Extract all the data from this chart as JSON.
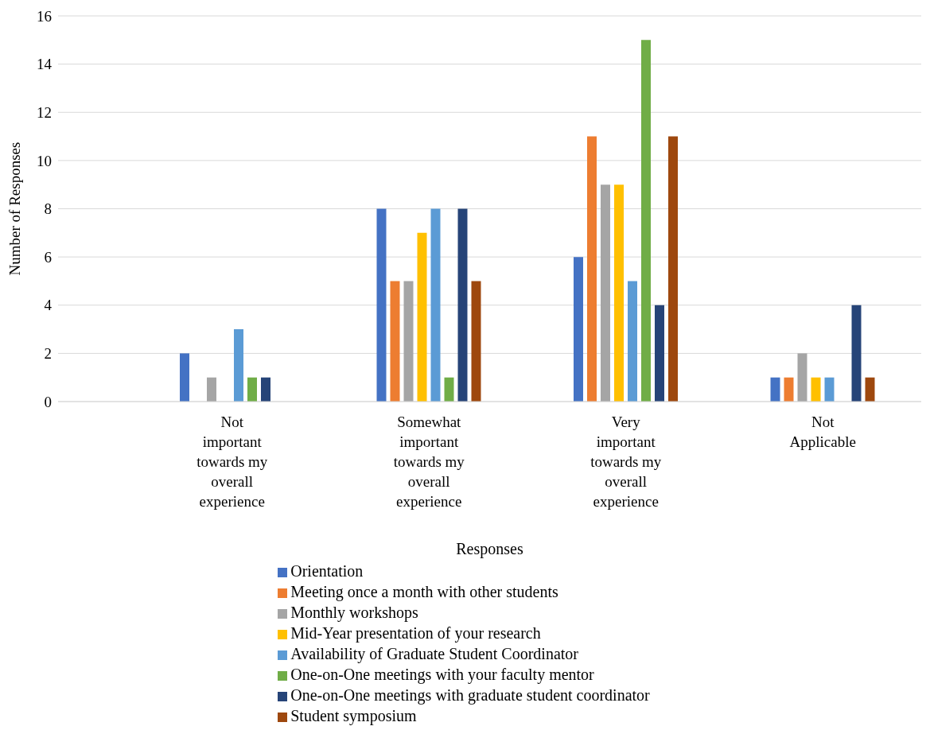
{
  "chart_data": {
    "type": "bar",
    "xlabel": "Responses",
    "ylabel": "Number of Responses",
    "categories": [
      "Not important towards my overall experience",
      "Somewhat important towards my overall experience",
      "Very important towards my overall experience",
      "Not Applicable"
    ],
    "series": [
      {
        "name": "Orientation",
        "color": "#4472c4",
        "values": [
          2,
          8,
          6,
          1
        ]
      },
      {
        "name": "Meeting once a month with other students",
        "color": "#ed7d31",
        "values": [
          0,
          5,
          11,
          1
        ]
      },
      {
        "name": "Monthly workshops",
        "color": "#a5a5a5",
        "values": [
          1,
          5,
          9,
          2
        ]
      },
      {
        "name": "Mid-Year presentation of your research",
        "color": "#ffc000",
        "values": [
          0,
          7,
          9,
          1
        ]
      },
      {
        "name": "Availability of Graduate Student Coordinator",
        "color": "#5b9bd5",
        "values": [
          3,
          8,
          5,
          1
        ]
      },
      {
        "name": "One-on-One meetings with your faculty mentor",
        "color": "#70ad47",
        "values": [
          1,
          1,
          15,
          0
        ]
      },
      {
        "name": "One-on-One meetings with graduate student coordinator",
        "color": "#264478",
        "values": [
          1,
          8,
          4,
          4
        ]
      },
      {
        "name": "Student symposium",
        "color": "#9e480e",
        "values": [
          0,
          5,
          11,
          1
        ]
      }
    ],
    "ylim": [
      0,
      16
    ],
    "yticks": [
      0,
      2,
      4,
      6,
      8,
      10,
      12,
      14,
      16
    ],
    "grid": "y",
    "legend": "bottom"
  }
}
